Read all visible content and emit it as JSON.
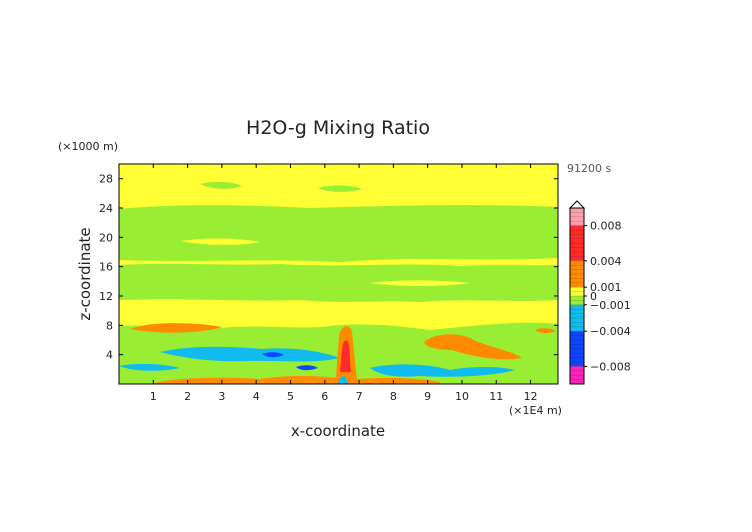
{
  "chart_data": {
    "type": "heatmap",
    "title": "H2O-g Mixing Ratio",
    "time_label": "91200 s",
    "xlabel": "x-coordinate",
    "ylabel": "z-coordinate",
    "x_unit": "(×1E4 m)",
    "y_unit": "(×1000 m)",
    "xlim": [
      0,
      12.8
    ],
    "ylim": [
      0,
      30
    ],
    "x_ticks": [
      1,
      2,
      3,
      4,
      5,
      6,
      7,
      8,
      9,
      10,
      11,
      12
    ],
    "y_ticks": [
      4,
      8,
      12,
      16,
      20,
      24,
      28
    ],
    "colorbar": {
      "range": [
        -0.01,
        0.01
      ],
      "labels": [
        {
          "value": 0.008,
          "text": "0.008"
        },
        {
          "value": 0.004,
          "text": "0.004"
        },
        {
          "value": 0.001,
          "text": "0.001"
        },
        {
          "value": 0,
          "text": "0"
        },
        {
          "value": -0.001,
          "text": "−0.001"
        },
        {
          "value": -0.004,
          "text": "−0.004"
        },
        {
          "value": -0.008,
          "text": "−0.008"
        }
      ],
      "colors": {
        "pos_high": "#ff9fae",
        "pos_mid": "#ff2a2a",
        "pos_low": "#ff8c00",
        "near_zero_pos": "#ffff33",
        "near_zero_neg": "#99ee33",
        "neg_low": "#11bbee",
        "neg_mid": "#1144ff",
        "neg_high": "#ff22bb"
      }
    }
  }
}
